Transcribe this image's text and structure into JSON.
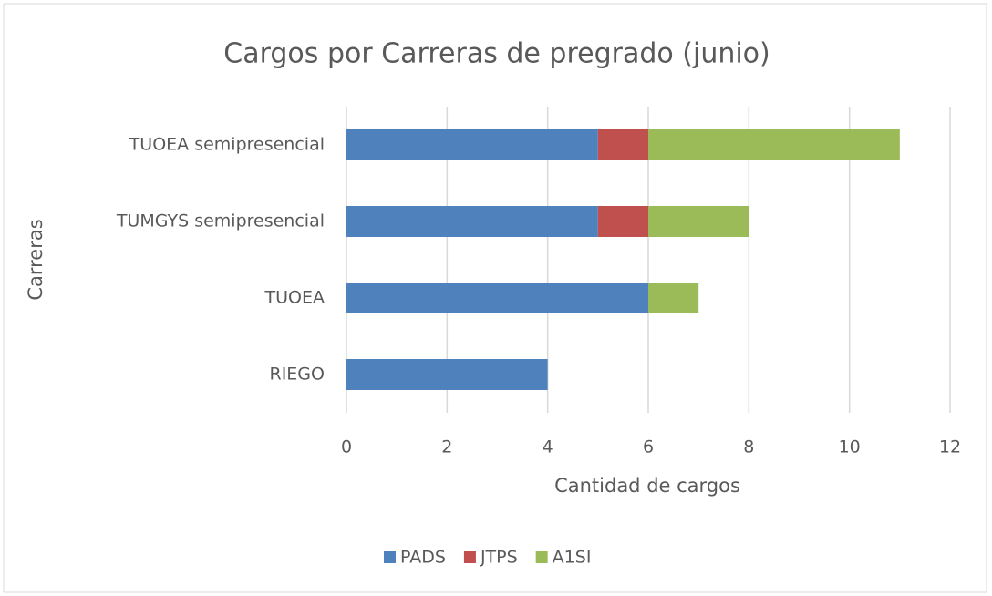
{
  "chart_data": {
    "type": "bar",
    "orientation": "horizontal",
    "stacked": true,
    "title": "Cargos por Carreras de pregrado (junio)",
    "x_label": "Cantidad de cargos",
    "y_label": "Carreras",
    "categories": [
      "TUOEA semipresencial",
      "TUMGYS semipresencial",
      "TUOEA",
      "RIEGO"
    ],
    "series": [
      {
        "name": "PADS",
        "color": "#4f81bd",
        "values": [
          5,
          5,
          6,
          4
        ]
      },
      {
        "name": "JTPS",
        "color": "#c0504d",
        "values": [
          1,
          1,
          0,
          0
        ]
      },
      {
        "name": "A1SI",
        "color": "#9bbb59",
        "values": [
          5,
          2,
          1,
          0
        ]
      }
    ],
    "xlim": [
      0,
      12
    ],
    "xticks": [
      0,
      2,
      4,
      6,
      8,
      10,
      12
    ],
    "grid": true,
    "legend": "bottom"
  }
}
